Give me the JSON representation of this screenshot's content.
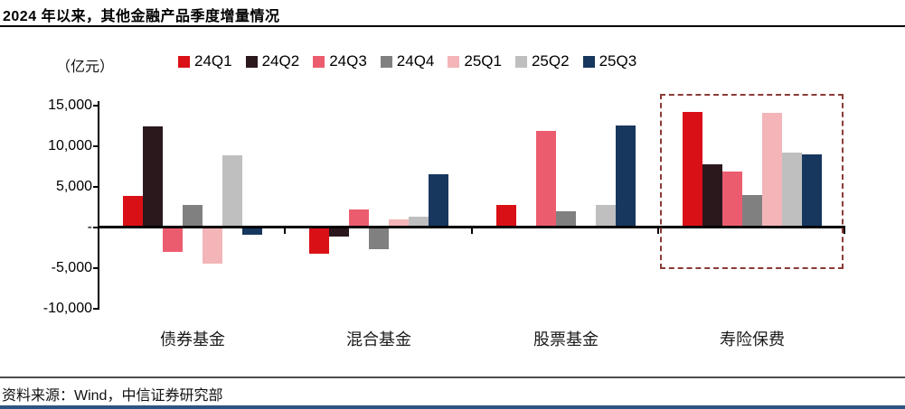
{
  "footer": {
    "source": "资料来源：Wind，中信证券研究部",
    "accent_bar_color": "#2b5580"
  },
  "chart_data": {
    "type": "bar",
    "title": "2024 年以来，其他金融产品季度增量情况",
    "unit_label": "（亿元）",
    "xlabel": "",
    "ylabel": "亿元",
    "categories": [
      "债券基金",
      "混合基金",
      "股票基金",
      "寿险保费"
    ],
    "series": [
      {
        "name": "24Q1",
        "color": "#da1017",
        "values": [
          3700,
          -3100,
          2600,
          14000
        ]
      },
      {
        "name": "24Q2",
        "color": "#2b181d",
        "values": [
          12200,
          -1000,
          0,
          7500
        ]
      },
      {
        "name": "24Q3",
        "color": "#ec5c6f",
        "values": [
          -2900,
          2000,
          11700,
          6700
        ]
      },
      {
        "name": "24Q4",
        "color": "#808080",
        "values": [
          2500,
          -2500,
          1800,
          3800
        ]
      },
      {
        "name": "25Q1",
        "color": "#f3b5b8",
        "values": [
          -4300,
          800,
          0,
          13900
        ]
      },
      {
        "name": "25Q2",
        "color": "#bfbfbf",
        "values": [
          8700,
          1100,
          2600,
          9000
        ]
      },
      {
        "name": "25Q3",
        "color": "#17375e",
        "values": [
          -800,
          6300,
          12300,
          8800
        ]
      }
    ],
    "y_ticks": [
      {
        "value": 15000,
        "label": "15,000"
      },
      {
        "value": 10000,
        "label": "10,000"
      },
      {
        "value": 5000,
        "label": "5,000"
      },
      {
        "value": 0,
        "label": "-"
      },
      {
        "value": -5000,
        "label": "-5,000"
      },
      {
        "value": -10000,
        "label": "-10,000"
      }
    ],
    "ylim": [
      -10000,
      15000
    ],
    "grid": false,
    "legend_position": "top",
    "highlight": {
      "category": "寿险保费",
      "border_color": "#8a3b36",
      "style": "dashed-box"
    }
  }
}
